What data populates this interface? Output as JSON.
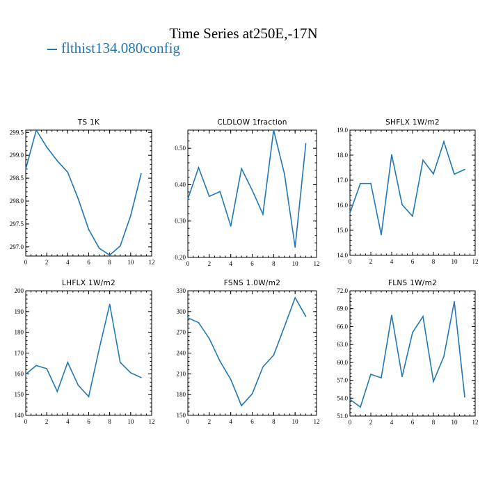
{
  "title": "Time Series at250E,-17N",
  "legend_label": "flthist134.080config",
  "colors": {
    "series": "#1f77b4",
    "axis": "#000000"
  },
  "chart_data": [
    {
      "type": "line",
      "title": "TS   1K",
      "x": [
        0,
        1,
        2,
        3,
        4,
        5,
        6,
        7,
        8,
        9,
        10,
        11
      ],
      "series": [
        {
          "name": "flthist134.080config",
          "values": [
            298.7,
            299.58,
            299.18,
            298.88,
            298.63,
            298.05,
            297.38,
            296.97,
            296.82,
            297.02,
            297.68,
            298.6
          ]
        }
      ],
      "xlim": [
        0,
        12
      ],
      "ylim": [
        296.8,
        299.55
      ],
      "xticks": [
        0,
        2,
        4,
        6,
        8,
        10,
        12
      ],
      "yticks": [
        297.0,
        297.5,
        298.0,
        298.5,
        299.0,
        299.5
      ],
      "ytick_labels": [
        "297.0",
        "297.5",
        "298.0",
        "298.5",
        "299.0",
        "299.5"
      ]
    },
    {
      "type": "line",
      "title": "CLDLOW   1fraction",
      "x": [
        0,
        1,
        2,
        3,
        4,
        5,
        6,
        7,
        8,
        9,
        10,
        11
      ],
      "series": [
        {
          "name": "flthist134.080config",
          "values": [
            0.36,
            0.447,
            0.368,
            0.381,
            0.286,
            0.444,
            0.385,
            0.319,
            0.55,
            0.43,
            0.228,
            0.513
          ]
        }
      ],
      "xlim": [
        0,
        12
      ],
      "ylim": [
        0.2,
        0.55
      ],
      "xticks": [
        0,
        2,
        4,
        6,
        8,
        10,
        12
      ],
      "yticks": [
        0.2,
        0.3,
        0.4,
        0.5
      ],
      "ytick_labels": [
        "0.20",
        "0.30",
        "0.40",
        "0.50"
      ]
    },
    {
      "type": "line",
      "title": "SHFLX   1W/m2",
      "x": [
        0,
        1,
        2,
        3,
        4,
        5,
        6,
        7,
        8,
        9,
        10,
        11
      ],
      "series": [
        {
          "name": "flthist134.080config",
          "values": [
            15.7,
            16.87,
            16.87,
            14.82,
            18.02,
            16.02,
            15.56,
            17.8,
            17.25,
            18.54,
            17.24,
            17.43
          ]
        }
      ],
      "xlim": [
        0,
        12
      ],
      "ylim": [
        14.0,
        19.0
      ],
      "xticks": [
        0,
        2,
        4,
        6,
        8,
        10,
        12
      ],
      "yticks": [
        14.0,
        15.0,
        16.0,
        17.0,
        18.0,
        19.0
      ],
      "ytick_labels": [
        "14.0",
        "15.0",
        "16.0",
        "17.0",
        "18.0",
        "19.0"
      ]
    },
    {
      "type": "line",
      "title": "LHFLX   1W/m2",
      "x": [
        0,
        1,
        2,
        3,
        4,
        5,
        6,
        7,
        8,
        9,
        10,
        11
      ],
      "series": [
        {
          "name": "flthist134.080config",
          "values": [
            159.8,
            164.0,
            162.5,
            151.5,
            165.5,
            154.5,
            149.0,
            172.0,
            193.5,
            165.5,
            160.5,
            158.2
          ]
        }
      ],
      "xlim": [
        0,
        12
      ],
      "ylim": [
        140,
        200
      ],
      "xticks": [
        0,
        2,
        4,
        6,
        8,
        10,
        12
      ],
      "yticks": [
        140,
        150,
        160,
        170,
        180,
        190,
        200
      ],
      "ytick_labels": [
        "140",
        "150",
        "160",
        "170",
        "180",
        "190",
        "200"
      ]
    },
    {
      "type": "line",
      "title": "FSNS   1.0W/m2",
      "x": [
        0,
        1,
        2,
        3,
        4,
        5,
        6,
        7,
        8,
        9,
        10,
        11
      ],
      "series": [
        {
          "name": "flthist134.080config",
          "values": [
            291,
            284,
            261,
            228,
            202,
            164,
            181,
            220,
            237,
            278,
            320,
            293
          ]
        }
      ],
      "xlim": [
        0,
        12
      ],
      "ylim": [
        150,
        330
      ],
      "xticks": [
        0,
        2,
        4,
        6,
        8,
        10,
        12
      ],
      "yticks": [
        150,
        180,
        210,
        240,
        270,
        300,
        330
      ],
      "ytick_labels": [
        "150",
        "180",
        "210",
        "240",
        "270",
        "300",
        "330"
      ]
    },
    {
      "type": "line",
      "title": "FLNS   1W/m2",
      "x": [
        0,
        1,
        2,
        3,
        4,
        5,
        6,
        7,
        8,
        9,
        10,
        11
      ],
      "series": [
        {
          "name": "flthist134.080config",
          "values": [
            53.8,
            52.5,
            58.0,
            57.4,
            67.9,
            57.6,
            65.0,
            67.7,
            56.8,
            61.0,
            70.2,
            54.2
          ]
        }
      ],
      "xlim": [
        0,
        12
      ],
      "ylim": [
        51.0,
        72.0
      ],
      "xticks": [
        0,
        2,
        4,
        6,
        8,
        10,
        12
      ],
      "yticks": [
        51.0,
        54.0,
        57.0,
        60.0,
        63.0,
        66.0,
        69.0,
        72.0
      ],
      "ytick_labels": [
        "51.0",
        "54.0",
        "57.0",
        "60.0",
        "63.0",
        "66.0",
        "69.0",
        "72.0"
      ]
    }
  ]
}
